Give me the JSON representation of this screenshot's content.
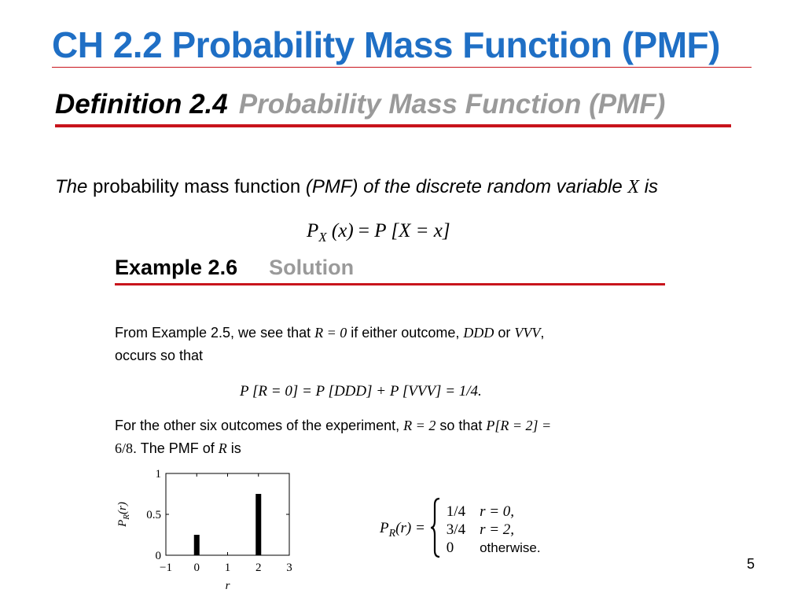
{
  "slide": {
    "title": "CH 2.2   Probability Mass Function (PMF)",
    "page_number": "5",
    "colors": {
      "title": "#1f6fc5",
      "rule": "#c8141c",
      "gray_heading": "#9a9a9a"
    }
  },
  "definition": {
    "label": "Definition 2.4",
    "name": "Probability Mass Function (PMF)",
    "text_the": "The",
    "text_pmf": "probability mass function",
    "text_rest": "(PMF) of the discrete random variable",
    "text_var": "X",
    "text_is": "is",
    "formula": {
      "lhs_p": "P",
      "lhs_sub": "X",
      "lhs_arg": "(x)",
      "eq": "=",
      "rhs_p": "P",
      "rhs_bracket": "[X = x]"
    }
  },
  "example": {
    "label": "Example 2.6",
    "solution_label": "Solution",
    "para1": {
      "t1": "From Example 2.5, we see that ",
      "m1": "R = 0",
      "t2": " if either outcome, ",
      "m2": "DDD",
      "t3": " or ",
      "m3": "VVV",
      "t4": ",",
      "line2": "occurs so that"
    },
    "formula2": "P [R = 0] = P [DDD] + P [VVV] = 1/4.",
    "para2": {
      "t1": "For the other six outcomes of the experiment, ",
      "m1": "R = 2",
      "t2": " so that ",
      "m2": "P[R = 2] =",
      "m3": "6/8",
      "t3": ". The PMF of ",
      "m4": "R",
      "t4": " is"
    }
  },
  "pmf": {
    "lhs": "P",
    "lhs_sub": "R",
    "lhs_arg": "(r) =",
    "cases": [
      {
        "value": "1/4",
        "condition": "r = 0,"
      },
      {
        "value": "3/4",
        "condition": "r = 2,"
      },
      {
        "value": "0",
        "condition": "otherwise."
      }
    ]
  },
  "chart_data": {
    "type": "bar",
    "x": [
      0,
      2
    ],
    "values": [
      0.25,
      0.75
    ],
    "xlim": [
      -1,
      3
    ],
    "ylim": [
      0,
      1
    ],
    "xticks": [
      "−1",
      "0",
      "1",
      "2",
      "3"
    ],
    "yticks": [
      "0",
      "0.5",
      "1"
    ],
    "xlabel": "r",
    "ylabel": "P_R(r)",
    "grid": false
  }
}
